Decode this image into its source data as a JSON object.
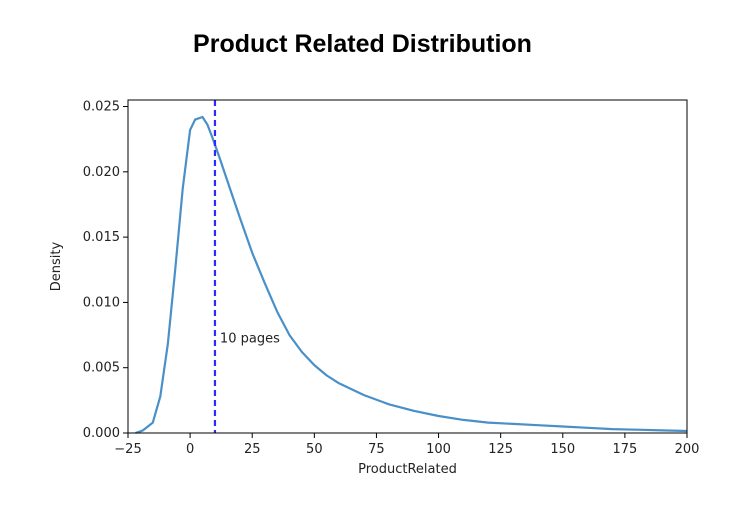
{
  "chart_data": {
    "type": "line",
    "title": "Product Related Distribution",
    "xlabel": "ProductRelated",
    "ylabel": "Density",
    "xlim": [
      -25,
      200
    ],
    "ylim": [
      0,
      0.0255
    ],
    "x_ticks": [
      -25,
      0,
      25,
      50,
      75,
      100,
      125,
      150,
      175,
      200
    ],
    "x_tick_labels": [
      "−25",
      "0",
      "25",
      "50",
      "75",
      "100",
      "125",
      "150",
      "175",
      "200"
    ],
    "y_ticks": [
      0.0,
      0.005,
      0.01,
      0.015,
      0.02,
      0.025
    ],
    "y_tick_labels": [
      "0.000",
      "0.005",
      "0.010",
      "0.015",
      "0.020",
      "0.025"
    ],
    "grid": false,
    "series": [
      {
        "color": "#4a90c8",
        "x": [
          -22,
          -19,
          -15,
          -12,
          -9,
          -6,
          -3,
          0,
          2,
          5,
          7,
          9,
          12,
          15,
          20,
          25,
          30,
          35,
          40,
          45,
          50,
          55,
          60,
          70,
          80,
          90,
          100,
          110,
          120,
          130,
          140,
          150,
          160,
          170,
          180,
          190,
          200
        ],
        "y": [
          0.0,
          0.0002,
          0.0008,
          0.0028,
          0.0068,
          0.0125,
          0.0187,
          0.0232,
          0.024,
          0.0242,
          0.0236,
          0.0226,
          0.021,
          0.0193,
          0.0165,
          0.0138,
          0.0115,
          0.0093,
          0.0075,
          0.0062,
          0.0052,
          0.0044,
          0.0038,
          0.0029,
          0.0022,
          0.0017,
          0.0013,
          0.001,
          0.0008,
          0.0007,
          0.0006,
          0.0005,
          0.0004,
          0.0003,
          0.00025,
          0.0002,
          0.00015
        ]
      }
    ],
    "reference_line": {
      "x": 10,
      "color": "#2b2bff",
      "style": "dashed"
    },
    "annotation": {
      "text": "10 pages",
      "x": 12,
      "y": 0.0073
    },
    "colors": {
      "axes": "#000000",
      "text": "#222222"
    }
  }
}
